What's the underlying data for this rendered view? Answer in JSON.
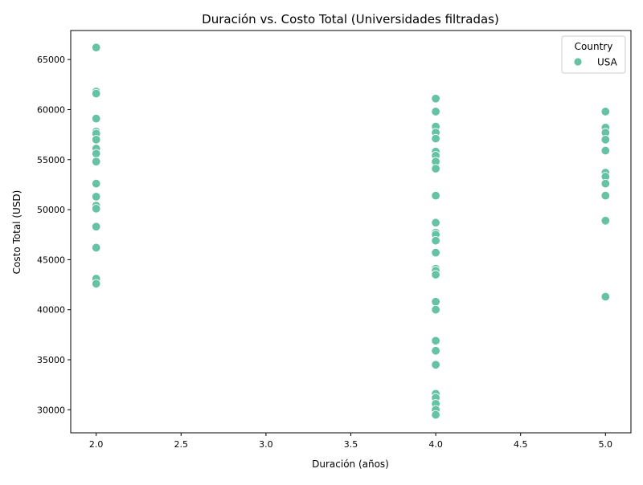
{
  "chart_data": {
    "type": "scatter",
    "title": "Duración vs. Costo Total (Universidades filtradas)",
    "xlabel": "Duración (años)",
    "ylabel": "Costo Total (USD)",
    "xlim": [
      1.85,
      5.15
    ],
    "ylim": [
      27700,
      67900
    ],
    "xticks": [
      "2.0",
      "2.5",
      "3.0",
      "3.5",
      "4.0",
      "4.5",
      "5.0"
    ],
    "xtick_values": [
      2.0,
      2.5,
      3.0,
      3.5,
      4.0,
      4.5,
      5.0
    ],
    "yticks": [
      "30000",
      "35000",
      "40000",
      "45000",
      "50000",
      "55000",
      "60000",
      "65000"
    ],
    "ytick_values": [
      30000,
      35000,
      40000,
      45000,
      50000,
      55000,
      60000,
      65000
    ],
    "grid": false,
    "legend": {
      "title": "Country",
      "position": "top-right"
    },
    "series": [
      {
        "name": "USA",
        "color": "#66c2a5",
        "points": [
          [
            2,
            66200
          ],
          [
            2,
            61800
          ],
          [
            2,
            61600
          ],
          [
            2,
            59100
          ],
          [
            2,
            57800
          ],
          [
            2,
            57600
          ],
          [
            2,
            57000
          ],
          [
            2,
            56100
          ],
          [
            2,
            55600
          ],
          [
            2,
            54800
          ],
          [
            2,
            52600
          ],
          [
            2,
            51300
          ],
          [
            2,
            50400
          ],
          [
            2,
            50100
          ],
          [
            2,
            48300
          ],
          [
            2,
            46200
          ],
          [
            2,
            43100
          ],
          [
            2,
            42600
          ],
          [
            4,
            61100
          ],
          [
            4,
            59800
          ],
          [
            4,
            58300
          ],
          [
            4,
            57700
          ],
          [
            4,
            57100
          ],
          [
            4,
            55800
          ],
          [
            4,
            55400
          ],
          [
            4,
            54800
          ],
          [
            4,
            54100
          ],
          [
            4,
            51400
          ],
          [
            4,
            48700
          ],
          [
            4,
            47700
          ],
          [
            4,
            47500
          ],
          [
            4,
            46900
          ],
          [
            4,
            45700
          ],
          [
            4,
            44100
          ],
          [
            4,
            43900
          ],
          [
            4,
            43500
          ],
          [
            4,
            40800
          ],
          [
            4,
            40000
          ],
          [
            4,
            36900
          ],
          [
            4,
            35900
          ],
          [
            4,
            34500
          ],
          [
            4,
            31600
          ],
          [
            4,
            31200
          ],
          [
            4,
            30600
          ],
          [
            4,
            30000
          ],
          [
            4,
            29500
          ],
          [
            5,
            59800
          ],
          [
            5,
            58200
          ],
          [
            5,
            57700
          ],
          [
            5,
            57000
          ],
          [
            5,
            55900
          ],
          [
            5,
            53700
          ],
          [
            5,
            53300
          ],
          [
            5,
            52600
          ],
          [
            5,
            51400
          ],
          [
            5,
            48900
          ],
          [
            5,
            41300
          ]
        ]
      }
    ]
  }
}
